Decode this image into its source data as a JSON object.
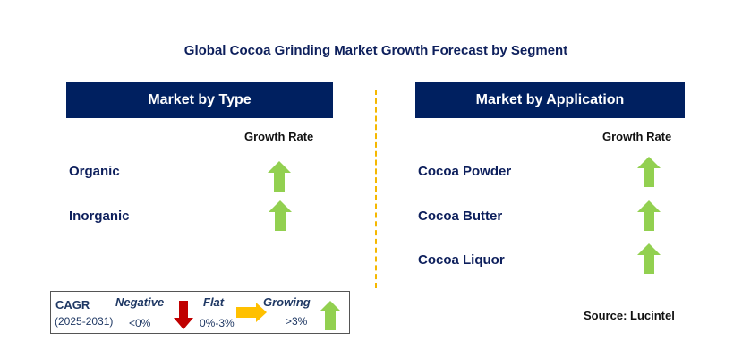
{
  "title": "Global Cocoa Grinding Market Growth Forecast by Segment",
  "left": {
    "header": "Market by Type",
    "growth_label": "Growth Rate",
    "items": [
      {
        "label": "Organic",
        "trend": "growing"
      },
      {
        "label": "Inorganic",
        "trend": "growing"
      }
    ]
  },
  "right": {
    "header": "Market by Application",
    "growth_label": "Growth Rate",
    "items": [
      {
        "label": "Cocoa Powder",
        "trend": "growing"
      },
      {
        "label": "Cocoa Butter",
        "trend": "growing"
      },
      {
        "label": "Cocoa Liquor",
        "trend": "growing"
      }
    ]
  },
  "legend": {
    "cagr": "CAGR",
    "period": "(2025-2031)",
    "negative": "Negative",
    "negative_range": "<0%",
    "flat": "Flat",
    "flat_range": "0%-3%",
    "growing": "Growing",
    "growing_range": ">3%"
  },
  "source": "Source: Lucintel",
  "colors": {
    "navy": "#002060",
    "green": "#92D050",
    "red": "#C00000",
    "yellow": "#FFC000",
    "divider": "#F5B800"
  }
}
